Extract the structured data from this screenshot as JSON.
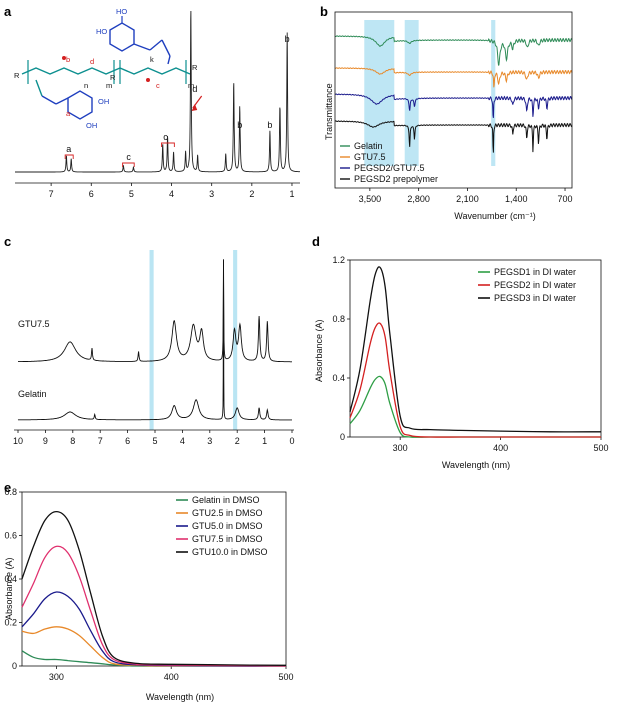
{
  "panels": {
    "a": {
      "label": "a",
      "xticks": [
        "7",
        "6",
        "5",
        "4",
        "3",
        "2",
        "1"
      ],
      "peak_labels": [
        "a",
        "c",
        "c",
        "d",
        "b",
        "b",
        "b"
      ],
      "structure": {
        "mol_labels": [
          "b",
          "d",
          "c",
          "a"
        ],
        "subscripts": [
          "R",
          "R",
          "R",
          "m",
          "m",
          "n",
          "k"
        ]
      }
    },
    "b": {
      "label": "b",
      "ylabel": "Transmittance",
      "xlabel": "Wavenumber (cm⁻¹)",
      "xticks": [
        "3,500",
        "2,800",
        "2,100",
        "1,400",
        "700"
      ],
      "legend": [
        "Gelatin",
        "GTU7.5",
        "PEGSD2/GTU7.5",
        "PEGSD2 prepolymer"
      ]
    },
    "c": {
      "label": "c",
      "xticks": [
        "10",
        "9",
        "8",
        "7",
        "6",
        "5",
        "4",
        "3",
        "2",
        "1",
        "0"
      ],
      "trace_labels": [
        "GTU7.5",
        "Gelatin"
      ]
    },
    "d": {
      "label": "d",
      "ylabel": "Absorbance (A)",
      "xlabel": "Wavelength (nm)",
      "yticks": [
        "0",
        "0.4",
        "0.8",
        "1.2"
      ],
      "xticks": [
        "300",
        "400",
        "500"
      ],
      "legend": [
        "PEGSD1 in DI water",
        "PEGSD2 in DI water",
        "PEGSD3 in DI water"
      ]
    },
    "e": {
      "label": "e",
      "ylabel": "Absorbance (A)",
      "xlabel": "Wavelength (nm)",
      "yticks": [
        "0",
        "0.2",
        "0.4",
        "0.6",
        "0.8"
      ],
      "xticks": [
        "300",
        "400",
        "500"
      ],
      "legend": [
        "Gelatin in DMSO",
        "GTU2.5 in DMSO",
        "GTU5.0 in DMSO",
        "GTU7.5 in DMSO",
        "GTU10.0 in DMSO"
      ]
    }
  },
  "chart_data": [
    {
      "panel": "a",
      "type": "line",
      "xlabel": "",
      "ylabel": "",
      "xlim": [
        7.9,
        0.8
      ],
      "series": [
        {
          "name": "",
          "color": "#222222",
          "peaks": [
            [
              6.62,
              0.1
            ],
            [
              6.5,
              0.08
            ],
            [
              5.2,
              0.04
            ],
            [
              4.95,
              0.03
            ],
            [
              4.22,
              0.17
            ],
            [
              4.1,
              0.22
            ],
            [
              3.95,
              0.12
            ],
            [
              3.65,
              0.12
            ],
            [
              3.52,
              1.0
            ],
            [
              3.35,
              0.1
            ],
            [
              2.65,
              0.11
            ],
            [
              2.45,
              0.55
            ],
            [
              2.3,
              0.4
            ],
            [
              1.55,
              0.25
            ],
            [
              1.3,
              0.4
            ],
            [
              1.12,
              0.85
            ]
          ]
        }
      ]
    },
    {
      "panel": "b",
      "type": "line",
      "xlabel": "Wavenumber (cm⁻¹)",
      "ylabel": "Transmittance",
      "xlim": [
        4000,
        600
      ],
      "highlight_bands": [
        [
          3580,
          3150
        ],
        [
          3000,
          2800
        ],
        [
          1760,
          1700
        ]
      ],
      "series": [
        {
          "name": "Gelatin",
          "color": "#2e8b57"
        },
        {
          "name": "GTU7.5",
          "color": "#e8892a"
        },
        {
          "name": "PEGSD2/GTU7.5",
          "color": "#1a1a8c"
        },
        {
          "name": "PEGSD2 prepolymer",
          "color": "#111111"
        }
      ]
    },
    {
      "panel": "c",
      "type": "line",
      "xlabel": "",
      "ylabel": "",
      "xlim": [
        10,
        0
      ],
      "highlight_bands": [
        [
          5.2,
          5.05
        ],
        [
          2.15,
          2.0
        ]
      ],
      "series": [
        {
          "name": "GTU7.5",
          "color": "#111111"
        },
        {
          "name": "Gelatin",
          "color": "#111111"
        }
      ]
    },
    {
      "panel": "d",
      "type": "line",
      "xlabel": "Wavelength (nm)",
      "ylabel": "Absorbance (A)",
      "xlim": [
        250,
        500
      ],
      "ylim": [
        0,
        1.2
      ],
      "x": [
        250,
        260,
        270,
        275,
        280,
        285,
        290,
        300,
        310,
        330,
        360,
        400,
        450,
        500
      ],
      "series": [
        {
          "name": "PEGSD1 in DI water",
          "color": "#2e9e45",
          "values": [
            0.09,
            0.18,
            0.33,
            0.39,
            0.41,
            0.36,
            0.22,
            0.03,
            0.0,
            0.0,
            0.0,
            0.0,
            0.0,
            0.0
          ]
        },
        {
          "name": "PEGSD2 in DI water",
          "color": "#d42020",
          "values": [
            0.13,
            0.32,
            0.63,
            0.74,
            0.77,
            0.68,
            0.43,
            0.07,
            0.01,
            0.0,
            0.0,
            0.0,
            0.0,
            0.0
          ]
        },
        {
          "name": "PEGSD3 in DI water",
          "color": "#111111",
          "values": [
            0.17,
            0.46,
            0.92,
            1.1,
            1.15,
            1.02,
            0.68,
            0.14,
            0.06,
            0.05,
            0.045,
            0.04,
            0.035,
            0.035
          ]
        }
      ]
    },
    {
      "panel": "e",
      "type": "line",
      "xlabel": "Wavelength (nm)",
      "ylabel": "Absorbance (A)",
      "xlim": [
        270,
        500
      ],
      "ylim": [
        0,
        0.8
      ],
      "x": [
        270,
        280,
        290,
        300,
        310,
        320,
        330,
        340,
        350,
        370,
        400,
        450,
        500
      ],
      "series": [
        {
          "name": "Gelatin in DMSO",
          "color": "#2e8b57",
          "values": [
            0.07,
            0.04,
            0.03,
            0.03,
            0.025,
            0.02,
            0.015,
            0.01,
            0.005,
            0.0,
            0.0,
            0.0,
            0.0
          ]
        },
        {
          "name": "GTU2.5 in DMSO",
          "color": "#e8892a",
          "values": [
            0.16,
            0.15,
            0.17,
            0.18,
            0.17,
            0.14,
            0.09,
            0.04,
            0.01,
            0.003,
            0.0,
            0.0,
            0.0
          ]
        },
        {
          "name": "GTU5.0 in DMSO",
          "color": "#1a1a8c",
          "values": [
            0.18,
            0.24,
            0.31,
            0.34,
            0.32,
            0.26,
            0.16,
            0.07,
            0.02,
            0.005,
            0.002,
            0.0,
            0.0
          ]
        },
        {
          "name": "GTU7.5 in DMSO",
          "color": "#e0306e",
          "values": [
            0.27,
            0.38,
            0.5,
            0.55,
            0.52,
            0.41,
            0.25,
            0.1,
            0.03,
            0.008,
            0.004,
            0.002,
            0.0
          ]
        },
        {
          "name": "GTU10.0 in DMSO",
          "color": "#111111",
          "values": [
            0.4,
            0.55,
            0.67,
            0.71,
            0.67,
            0.53,
            0.33,
            0.14,
            0.04,
            0.012,
            0.008,
            0.005,
            0.003
          ]
        }
      ]
    }
  ]
}
